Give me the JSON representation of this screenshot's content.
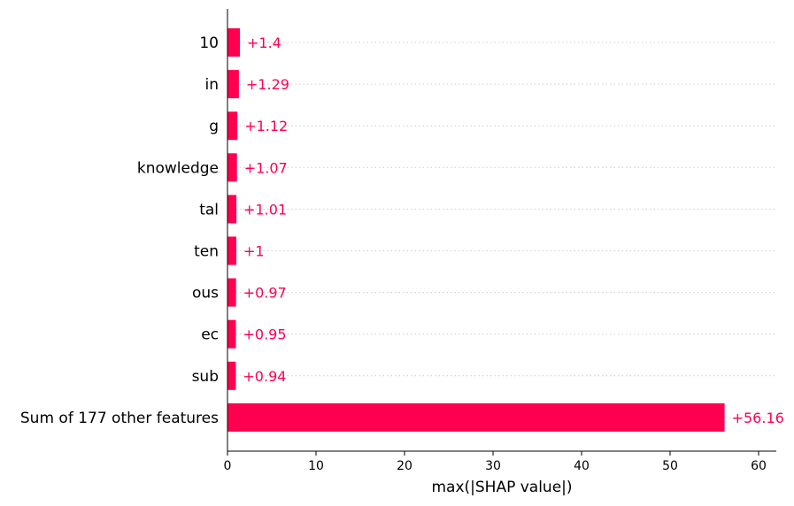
{
  "chart_data": {
    "type": "bar",
    "orientation": "horizontal",
    "categories": [
      "10",
      "in",
      "g",
      "knowledge",
      "tal",
      "ten",
      "ous",
      "ec",
      "sub",
      "Sum of 177 other features"
    ],
    "values": [
      1.4,
      1.29,
      1.12,
      1.07,
      1.01,
      1.0,
      0.97,
      0.95,
      0.94,
      56.16
    ],
    "value_labels": [
      "+1.4",
      "+1.29",
      "+1.12",
      "+1.07",
      "+1.01",
      "+1",
      "+0.97",
      "+0.95",
      "+0.94",
      "+56.16"
    ],
    "title": "",
    "xlabel": "max(|SHAP value|)",
    "ylabel": "",
    "xlim": [
      0,
      62
    ],
    "xticks": [
      0,
      10,
      20,
      30,
      40,
      50,
      60
    ],
    "xtick_labels": [
      "0",
      "10",
      "20",
      "30",
      "40",
      "50",
      "60"
    ],
    "grid": "horizontal-dotted",
    "legend": "none",
    "bar_color": "#ff0051"
  }
}
